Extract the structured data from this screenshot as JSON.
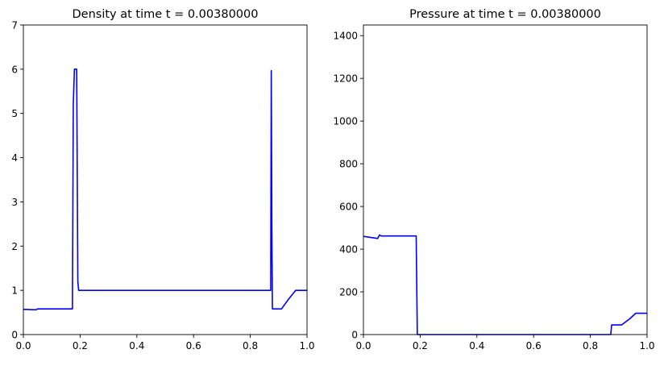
{
  "chart_data": [
    {
      "type": "line",
      "title": "Density at time t =     0.00380000",
      "xlabel": "",
      "ylabel": "",
      "xlim": [
        0,
        1
      ],
      "ylim": [
        0,
        7
      ],
      "xticks": [
        "0.0",
        "0.2",
        "0.4",
        "0.6",
        "0.8",
        "1.0"
      ],
      "yticks": [
        "0",
        "1",
        "2",
        "3",
        "4",
        "5",
        "6",
        "7"
      ],
      "grid": false,
      "line_color": "#0000ff",
      "series": [
        {
          "x": [
            0,
            0.045,
            0.05,
            0.173,
            0.176,
            0.18,
            0.188,
            0.192,
            0.195,
            0.87,
            0.872,
            0.874,
            0.876,
            0.878,
            0.88,
            0.91,
            0.935,
            0.96,
            1.0
          ],
          "y": [
            0.57,
            0.56,
            0.58,
            0.58,
            5.2,
            6.0,
            6.0,
            1.2,
            1.0,
            1.0,
            1.0,
            5.97,
            2.5,
            0.58,
            0.58,
            0.58,
            0.8,
            1.0,
            1.0
          ]
        }
      ]
    },
    {
      "type": "line",
      "title": "Pressure at time t =     0.00380000",
      "xlabel": "",
      "ylabel": "",
      "xlim": [
        0,
        1
      ],
      "ylim": [
        0,
        1450
      ],
      "xticks": [
        "0.0",
        "0.2",
        "0.4",
        "0.6",
        "0.8",
        "1.0"
      ],
      "yticks": [
        "0",
        "200",
        "400",
        "600",
        "800",
        "1000",
        "1200",
        "1400"
      ],
      "grid": false,
      "line_color": "#0000ff",
      "series": [
        {
          "x": [
            0,
            0.05,
            0.057,
            0.062,
            0.07,
            0.186,
            0.19,
            0.195,
            0.87,
            0.872,
            0.875,
            0.91,
            0.94,
            0.96,
            1.0
          ],
          "y": [
            460,
            450,
            467,
            462,
            462,
            462,
            0,
            0,
            0,
            0,
            45,
            45,
            75,
            100,
            100
          ]
        }
      ]
    }
  ]
}
